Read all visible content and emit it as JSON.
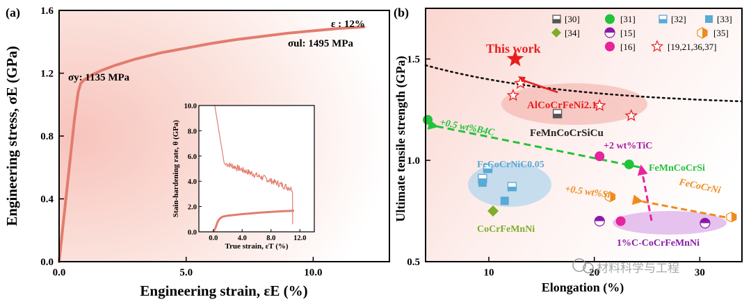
{
  "colors": {
    "curve": "#e27c6e",
    "green": "#22c33a",
    "olive": "#7fad2a",
    "magenta": "#e8239c",
    "purple": "#8a1aa8",
    "orange": "#f08a1e",
    "red": "#e81e1e",
    "blue_square": "#5aa9d6"
  },
  "chart_data": [
    {
      "type": "line",
      "panel_label": "(a)",
      "xlabel": "Engineering strain, εE (%)",
      "ylabel": "Engineering stress, σE (GPa)",
      "xlim": [
        0,
        13
      ],
      "ylim": [
        0,
        1.6
      ],
      "xticks": [
        "0.0",
        "5.0",
        "10.0"
      ],
      "yticks": [
        "0.0",
        "0.4",
        "0.8",
        "1.2",
        "1.6"
      ],
      "series": [
        {
          "x": [
            0,
            0.3,
            0.6,
            0.75,
            0.85,
            1.0,
            1.3,
            1.7,
            2.2,
            3.0,
            4.0,
            5.0,
            6.0,
            7.0,
            8.0,
            9.0,
            10.0,
            11.0,
            12.0
          ],
          "values": [
            0,
            0.45,
            0.9,
            1.08,
            1.135,
            1.16,
            1.19,
            1.22,
            1.25,
            1.29,
            1.33,
            1.36,
            1.39,
            1.415,
            1.435,
            1.455,
            1.47,
            1.485,
            1.495
          ]
        }
      ],
      "annotations": {
        "strain": "ε : 12%",
        "uts": "σul: 1495 MPa",
        "ys": "σy: 1135 MPa"
      },
      "inset": {
        "type": "line",
        "xlabel": "True strain, εT (%)",
        "ylabel": "Stain-hardening rate, θ (GPa)",
        "xlim": [
          -2,
          14
        ],
        "ylim": [
          0,
          10
        ],
        "xticks": [
          "0.0",
          "4.0",
          "8.0",
          "12.0"
        ],
        "yticks": [
          "0.0",
          "2.0",
          "4.0",
          "6.0",
          "8.0",
          "10.0"
        ]
      }
    },
    {
      "type": "scatter",
      "panel_label": "(b)",
      "xlabel": "Elongation (%)",
      "ylabel": "Ultimate tensile strength (GPa)",
      "xlim": [
        4,
        34
      ],
      "ylim": [
        0.5,
        1.75
      ],
      "xticks": [
        "10",
        "20",
        "30"
      ],
      "yticks": [
        "0.5",
        "1.0",
        "1.5"
      ],
      "legend": [
        "[30]",
        "[31]",
        "[32]",
        "[33]",
        "[34]",
        "[15]",
        "[35]",
        "[16]",
        "[19,21,36,37]"
      ],
      "points": [
        {
          "ref": "this",
          "x": 12.5,
          "y": 1.5
        },
        {
          "ref": "[19,21,36,37]",
          "x": 13.0,
          "y": 1.38
        },
        {
          "ref": "[19,21,36,37]",
          "x": 12.3,
          "y": 1.32
        },
        {
          "ref": "[19,21,36,37]",
          "x": 20.5,
          "y": 1.27
        },
        {
          "ref": "[19,21,36,37]",
          "x": 23.5,
          "y": 1.22
        },
        {
          "ref": "[30]",
          "x": 16.5,
          "y": 1.23
        },
        {
          "ref": "[31]",
          "x": 4.2,
          "y": 1.2
        },
        {
          "ref": "[31]",
          "x": 23.3,
          "y": 0.98
        },
        {
          "ref": "[16]",
          "x": 20.5,
          "y": 1.02
        },
        {
          "ref": "[16]",
          "x": 22.5,
          "y": 0.7
        },
        {
          "ref": "[32]",
          "x": 9.9,
          "y": 0.96
        },
        {
          "ref": "[32]",
          "x": 9.4,
          "y": 0.91
        },
        {
          "ref": "[32]",
          "x": 12.2,
          "y": 0.87
        },
        {
          "ref": "[33]",
          "x": 9.4,
          "y": 0.89
        },
        {
          "ref": "[33]",
          "x": 11.5,
          "y": 0.8
        },
        {
          "ref": "[34]",
          "x": 10.4,
          "y": 0.75
        },
        {
          "ref": "[15]",
          "x": 20.5,
          "y": 0.7
        },
        {
          "ref": "[15]",
          "x": 30.5,
          "y": 0.69
        },
        {
          "ref": "[35]",
          "x": 21.5,
          "y": 0.82
        },
        {
          "ref": "[35]",
          "x": 33.0,
          "y": 0.72
        }
      ],
      "labels": {
        "this_work": "This work",
        "alcocrfeni": "AlCoCrFeNi2.1",
        "femncocrsicu": "FeMnCoCrSiCu",
        "b4c": "+0.5 wt%B4C",
        "tic": "+2 wt%TiC",
        "femncocrsi": "FeMnCoCrSi",
        "fecocrnic": "FeCoCrNiC0.05",
        "si": "+0.5 wt%Si",
        "fecocrni": "FeCoCrNi",
        "cocrfemnni": "CoCrFeMnNi",
        "c_cocrfemnni": "1%C-CoCrFeMnNi"
      }
    }
  ],
  "watermark": "材料科学与工程"
}
